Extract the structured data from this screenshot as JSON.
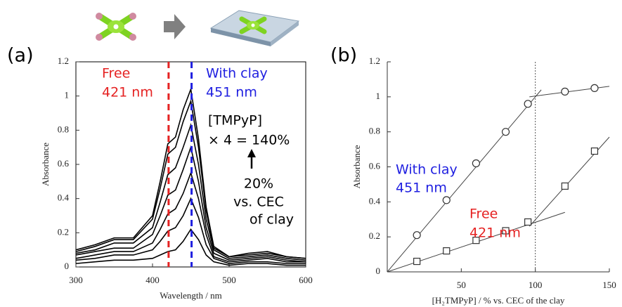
{
  "chart_data": [
    {
      "type": "line",
      "panel_label": "(a)",
      "xlabel": "Wavelength / nm",
      "ylabel": "Absorbance",
      "x": [
        300,
        325,
        350,
        375,
        400,
        410,
        420,
        430,
        440,
        450,
        460,
        470,
        480,
        500,
        525,
        550,
        575,
        600
      ],
      "series": [
        {
          "color": "#000000",
          "values": [
            0.02,
            0.03,
            0.04,
            0.04,
            0.05,
            0.07,
            0.09,
            0.1,
            0.15,
            0.22,
            0.16,
            0.07,
            0.03,
            0.01,
            0.02,
            0.02,
            0.01,
            0.01
          ]
        },
        {
          "color": "#000000",
          "values": [
            0.04,
            0.05,
            0.07,
            0.07,
            0.1,
            0.15,
            0.21,
            0.23,
            0.3,
            0.4,
            0.29,
            0.13,
            0.05,
            0.02,
            0.03,
            0.03,
            0.02,
            0.02
          ]
        },
        {
          "color": "#000000",
          "values": [
            0.05,
            0.07,
            0.09,
            0.09,
            0.14,
            0.22,
            0.31,
            0.34,
            0.43,
            0.55,
            0.4,
            0.19,
            0.06,
            0.03,
            0.04,
            0.05,
            0.03,
            0.03
          ]
        },
        {
          "color": "#000000",
          "values": [
            0.07,
            0.09,
            0.11,
            0.11,
            0.19,
            0.3,
            0.42,
            0.45,
            0.57,
            0.7,
            0.5,
            0.23,
            0.08,
            0.04,
            0.05,
            0.06,
            0.04,
            0.03
          ]
        },
        {
          "color": "#000000",
          "values": [
            0.08,
            0.1,
            0.14,
            0.14,
            0.23,
            0.38,
            0.54,
            0.58,
            0.7,
            0.83,
            0.6,
            0.28,
            0.1,
            0.05,
            0.06,
            0.07,
            0.05,
            0.04
          ]
        },
        {
          "color": "#000000",
          "values": [
            0.09,
            0.12,
            0.16,
            0.16,
            0.28,
            0.46,
            0.66,
            0.7,
            0.85,
            0.97,
            0.7,
            0.33,
            0.11,
            0.06,
            0.07,
            0.08,
            0.06,
            0.05
          ]
        },
        {
          "color": "#000000",
          "values": [
            0.1,
            0.13,
            0.17,
            0.17,
            0.3,
            0.5,
            0.72,
            0.76,
            0.92,
            1.04,
            0.75,
            0.35,
            0.12,
            0.06,
            0.08,
            0.09,
            0.06,
            0.05
          ]
        }
      ],
      "markers": [
        {
          "x": 421,
          "color": "#e52222"
        },
        {
          "x": 451,
          "color": "#1f1fe0"
        }
      ],
      "annotations": [
        {
          "text": "Free",
          "color": "#e52222"
        },
        {
          "text": "421 nm",
          "color": "#e52222"
        },
        {
          "text": "With clay",
          "color": "#1f1fe0"
        },
        {
          "text": "451 nm",
          "color": "#1f1fe0"
        },
        {
          "text": "[TMPyP]",
          "color": "#000000"
        },
        {
          "text": "× 4 = 140%",
          "color": "#000000"
        },
        {
          "text": "20%",
          "color": "#000000"
        },
        {
          "text": "vs. CEC",
          "color": "#000000"
        },
        {
          "text": "of clay",
          "color": "#000000"
        }
      ],
      "xlim": [
        300,
        600
      ],
      "ylim": [
        0,
        1.2
      ],
      "xticks": [
        300,
        400,
        500,
        600
      ],
      "yticks": [
        0,
        0.2,
        0.4,
        0.6,
        0.8,
        1,
        1.2
      ]
    },
    {
      "type": "scatter",
      "panel_label": "(b)",
      "xlabel": "[H₂TMPyP] / % vs. CEC of the clay",
      "ylabel": "Absorbance",
      "series": [
        {
          "marker": "circle",
          "color": "#333333",
          "x": [
            20,
            40,
            60,
            80,
            95,
            120,
            140
          ],
          "values": [
            0.21,
            0.41,
            0.62,
            0.8,
            0.96,
            1.03,
            1.05
          ]
        },
        {
          "marker": "square",
          "color": "#333333",
          "x": [
            20,
            40,
            60,
            80,
            95,
            120,
            140
          ],
          "values": [
            0.06,
            0.12,
            0.18,
            0.235,
            0.285,
            0.49,
            0.69
          ]
        }
      ],
      "fit_lines": [
        {
          "x": [
            0,
            104
          ],
          "values": [
            0,
            1.04
          ]
        },
        {
          "x": [
            96,
            150
          ],
          "values": [
            1.0,
            1.06
          ]
        },
        {
          "x": [
            0,
            120
          ],
          "values": [
            0,
            0.34
          ]
        },
        {
          "x": [
            96,
            150
          ],
          "values": [
            0.26,
            0.77
          ]
        }
      ],
      "ref_line_x": 100,
      "annotations": [
        {
          "text": "With clay",
          "color": "#1f1fe0"
        },
        {
          "text": "451 nm",
          "color": "#1f1fe0"
        },
        {
          "text": "Free",
          "color": "#e52222"
        },
        {
          "text": "421 nm",
          "color": "#e52222"
        }
      ],
      "xlim": [
        0,
        150
      ],
      "ylim": [
        0,
        1.2
      ],
      "xticks": [
        50,
        100,
        150
      ],
      "yticks": [
        0,
        0.2,
        0.4,
        0.6,
        0.8,
        1,
        1.2
      ]
    }
  ]
}
